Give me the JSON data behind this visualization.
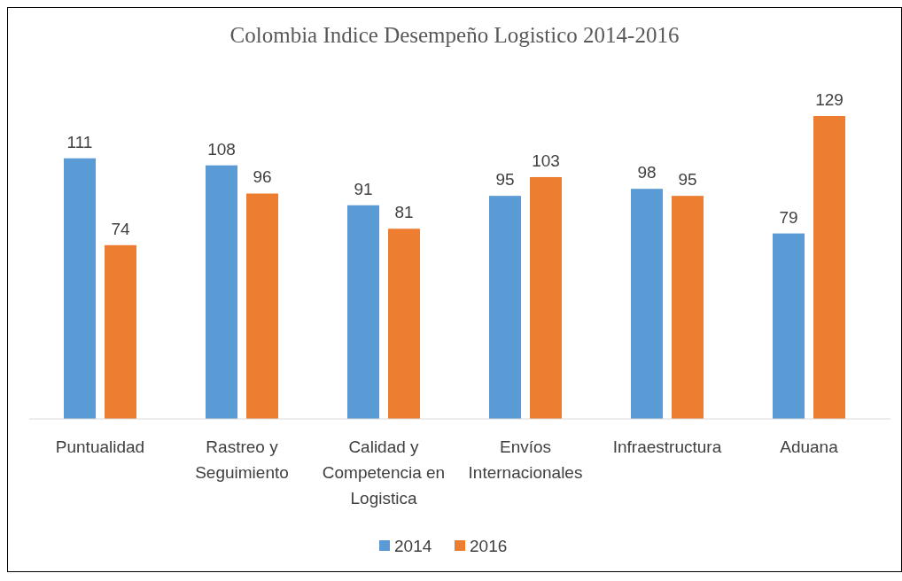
{
  "chart_data": {
    "type": "bar",
    "title": "Colombia Indice Desempeño Logistico 2014-2016",
    "categories": [
      "Puntualidad",
      "Rastreo y Seguimiento",
      "Calidad y Competencia en Logistica",
      "Envíos Internacionales",
      "Infraestructura",
      "Aduana"
    ],
    "series": [
      {
        "name": "2014",
        "color": "#5b9bd5",
        "values": [
          111,
          108,
          91,
          95,
          98,
          79
        ]
      },
      {
        "name": "2016",
        "color": "#ed7d31",
        "values": [
          74,
          96,
          81,
          103,
          95,
          129
        ]
      }
    ],
    "data_labels": true,
    "legend": "bottom",
    "grid": false
  }
}
